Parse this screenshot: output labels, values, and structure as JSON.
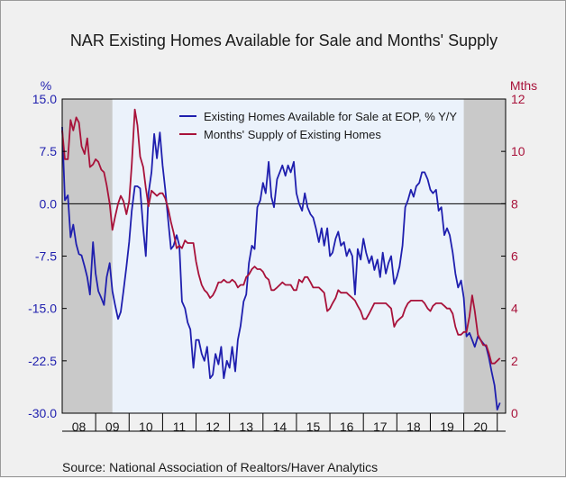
{
  "chart_data": {
    "type": "line",
    "title": "NAR Existing Homes Available for Sale and Months' Supply",
    "source": "Source:  National Association of Realtors/Haver Analytics",
    "y_left": {
      "unit": "%",
      "ticks": [
        "15.0",
        "7.5",
        "0.0",
        "-7.5",
        "-15.0",
        "-22.5",
        "-30.0"
      ],
      "range": [
        -30,
        15
      ],
      "color": "#1f1fae"
    },
    "y_right": {
      "unit": "Mths",
      "ticks": [
        "12",
        "10",
        "8",
        "6",
        "4",
        "2",
        "0"
      ],
      "range": [
        0,
        12
      ],
      "color": "#a8123a"
    },
    "x_ticks": [
      "08",
      "09",
      "10",
      "11",
      "12",
      "13",
      "14",
      "15",
      "16",
      "17",
      "18",
      "19",
      "20"
    ],
    "x_range": [
      2008.0,
      2021.25
    ],
    "recessions": [
      [
        2008.0,
        2009.5
      ],
      [
        2020.0,
        2021.25
      ]
    ],
    "zero_line": 0,
    "grid": false,
    "legend_position": "top-right",
    "series": [
      {
        "name": "Existing Homes Available for Sale at EOP, % Y/Y",
        "axis": "left",
        "color": "#1f1fae",
        "x": [
          2008.0,
          2008.08,
          2008.17,
          2008.25,
          2008.33,
          2008.42,
          2008.5,
          2008.58,
          2008.67,
          2008.75,
          2008.83,
          2008.92,
          2009.0,
          2009.08,
          2009.17,
          2009.25,
          2009.33,
          2009.42,
          2009.5,
          2009.58,
          2009.67,
          2009.75,
          2009.83,
          2009.92,
          2010.0,
          2010.08,
          2010.17,
          2010.25,
          2010.33,
          2010.42,
          2010.5,
          2010.58,
          2010.67,
          2010.75,
          2010.83,
          2010.92,
          2011.0,
          2011.08,
          2011.17,
          2011.25,
          2011.33,
          2011.42,
          2011.5,
          2011.58,
          2011.67,
          2011.75,
          2011.83,
          2011.92,
          2012.0,
          2012.08,
          2012.17,
          2012.25,
          2012.33,
          2012.42,
          2012.5,
          2012.58,
          2012.67,
          2012.75,
          2012.83,
          2012.92,
          2013.0,
          2013.08,
          2013.17,
          2013.25,
          2013.33,
          2013.42,
          2013.5,
          2013.58,
          2013.67,
          2013.75,
          2013.83,
          2013.92,
          2014.0,
          2014.08,
          2014.17,
          2014.25,
          2014.33,
          2014.42,
          2014.5,
          2014.58,
          2014.67,
          2014.75,
          2014.83,
          2014.92,
          2015.0,
          2015.08,
          2015.17,
          2015.25,
          2015.33,
          2015.42,
          2015.5,
          2015.58,
          2015.67,
          2015.75,
          2015.83,
          2015.92,
          2016.0,
          2016.08,
          2016.17,
          2016.25,
          2016.33,
          2016.42,
          2016.5,
          2016.58,
          2016.67,
          2016.75,
          2016.83,
          2016.92,
          2017.0,
          2017.08,
          2017.17,
          2017.25,
          2017.33,
          2017.42,
          2017.5,
          2017.58,
          2017.67,
          2017.75,
          2017.83,
          2017.92,
          2018.0,
          2018.08,
          2018.17,
          2018.25,
          2018.33,
          2018.42,
          2018.5,
          2018.58,
          2018.67,
          2018.75,
          2018.83,
          2018.92,
          2019.0,
          2019.08,
          2019.17,
          2019.25,
          2019.33,
          2019.42,
          2019.5,
          2019.58,
          2019.67,
          2019.75,
          2019.83,
          2019.92,
          2020.0,
          2020.08,
          2020.17,
          2020.25,
          2020.33,
          2020.42,
          2020.5,
          2020.58,
          2020.67,
          2020.75,
          2020.83,
          2020.92,
          2021.0,
          2021.08
        ],
        "values": [
          11.0,
          0.5,
          1.2,
          -4.8,
          -3.0,
          -5.8,
          -7.2,
          -7.4,
          -9.0,
          -10.5,
          -13.0,
          -5.5,
          -10.0,
          -12.5,
          -13.5,
          -14.5,
          -10.5,
          -8.5,
          -12.5,
          -14.5,
          -16.5,
          -15.5,
          -12.5,
          -9.0,
          -5.5,
          -1.0,
          2.5,
          2.5,
          2.2,
          -3.5,
          -7.5,
          1.5,
          4.5,
          10.0,
          6.5,
          10.2,
          5.5,
          2.0,
          -2.5,
          -6.5,
          -6.0,
          -4.5,
          -6.0,
          -14.0,
          -15.0,
          -17.0,
          -18.0,
          -23.5,
          -19.5,
          -19.5,
          -21.5,
          -22.5,
          -20.5,
          -25.0,
          -24.5,
          -21.5,
          -23.0,
          -20.5,
          -25.0,
          -22.5,
          -23.5,
          -20.5,
          -24.0,
          -19.5,
          -17.5,
          -14.0,
          -13.0,
          -8.5,
          -6.0,
          -6.5,
          -0.5,
          0.5,
          3.0,
          1.5,
          6.0,
          1.0,
          -0.5,
          3.5,
          4.5,
          5.5,
          4.0,
          5.5,
          4.5,
          6.0,
          1.5,
          0.0,
          -1.0,
          1.5,
          -0.5,
          -1.5,
          -2.0,
          -3.5,
          -5.5,
          -3.5,
          -6.0,
          -3.5,
          -7.5,
          -7.0,
          -5.0,
          -4.0,
          -6.0,
          -5.5,
          -7.5,
          -6.5,
          -7.5,
          -13.0,
          -6.5,
          -8.0,
          -5.0,
          -7.0,
          -8.5,
          -7.5,
          -9.5,
          -8.0,
          -10.5,
          -7.0,
          -10.0,
          -8.5,
          -7.5,
          -11.5,
          -10.5,
          -9.0,
          -6.0,
          -0.5,
          0.5,
          2.0,
          1.0,
          2.5,
          3.0,
          4.5,
          4.5,
          3.5,
          2.0,
          1.5,
          2.0,
          -1.0,
          -0.5,
          -4.5,
          -3.5,
          -4.5,
          -7.0,
          -10.0,
          -12.0,
          -11.0,
          -13.5,
          -19.0,
          -18.5,
          -19.5,
          -20.5,
          -19.0,
          -19.5,
          -20.0,
          -20.5,
          -22.0,
          -24.0,
          -26.0,
          -29.5,
          -28.5
        ]
      },
      {
        "name": "Months' Supply of Existing Homes",
        "axis": "right",
        "color": "#a8123a",
        "x": [
          2008.0,
          2008.08,
          2008.17,
          2008.25,
          2008.33,
          2008.42,
          2008.5,
          2008.58,
          2008.67,
          2008.75,
          2008.83,
          2008.92,
          2009.0,
          2009.08,
          2009.17,
          2009.25,
          2009.33,
          2009.42,
          2009.5,
          2009.58,
          2009.67,
          2009.75,
          2009.83,
          2009.92,
          2010.0,
          2010.08,
          2010.17,
          2010.25,
          2010.33,
          2010.42,
          2010.5,
          2010.58,
          2010.67,
          2010.75,
          2010.83,
          2010.92,
          2011.0,
          2011.08,
          2011.17,
          2011.25,
          2011.33,
          2011.42,
          2011.5,
          2011.58,
          2011.67,
          2011.75,
          2011.83,
          2011.92,
          2012.0,
          2012.08,
          2012.17,
          2012.25,
          2012.33,
          2012.42,
          2012.5,
          2012.58,
          2012.67,
          2012.75,
          2012.83,
          2012.92,
          2013.0,
          2013.08,
          2013.17,
          2013.25,
          2013.33,
          2013.42,
          2013.5,
          2013.58,
          2013.67,
          2013.75,
          2013.83,
          2013.92,
          2014.0,
          2014.08,
          2014.17,
          2014.25,
          2014.33,
          2014.42,
          2014.5,
          2014.58,
          2014.67,
          2014.75,
          2014.83,
          2014.92,
          2015.0,
          2015.08,
          2015.17,
          2015.25,
          2015.33,
          2015.42,
          2015.5,
          2015.58,
          2015.67,
          2015.75,
          2015.83,
          2015.92,
          2016.0,
          2016.08,
          2016.17,
          2016.25,
          2016.33,
          2016.42,
          2016.5,
          2016.58,
          2016.67,
          2016.75,
          2016.83,
          2016.92,
          2017.0,
          2017.08,
          2017.17,
          2017.25,
          2017.33,
          2017.42,
          2017.5,
          2017.58,
          2017.67,
          2017.75,
          2017.83,
          2017.92,
          2018.0,
          2018.08,
          2018.17,
          2018.25,
          2018.33,
          2018.42,
          2018.5,
          2018.58,
          2018.67,
          2018.75,
          2018.83,
          2018.92,
          2019.0,
          2019.08,
          2019.17,
          2019.25,
          2019.33,
          2019.42,
          2019.5,
          2019.58,
          2019.67,
          2019.75,
          2019.83,
          2019.92,
          2020.0,
          2020.08,
          2020.17,
          2020.25,
          2020.33,
          2020.42,
          2020.5,
          2020.58,
          2020.67,
          2020.75,
          2020.83,
          2020.92,
          2021.0,
          2021.08
        ],
        "values": [
          10.8,
          9.7,
          9.7,
          11.2,
          10.8,
          11.3,
          11.1,
          10.2,
          9.9,
          10.5,
          9.4,
          9.5,
          9.7,
          9.6,
          9.3,
          9.2,
          8.7,
          8.0,
          7.0,
          7.5,
          8.0,
          8.3,
          8.1,
          7.6,
          8.1,
          9.5,
          11.6,
          11.0,
          9.8,
          9.4,
          8.6,
          7.9,
          8.5,
          8.4,
          8.3,
          8.4,
          8.4,
          8.2,
          7.8,
          7.3,
          6.9,
          6.3,
          6.4,
          6.3,
          6.6,
          6.5,
          6.5,
          6.5,
          5.8,
          5.3,
          4.9,
          4.7,
          4.6,
          4.4,
          4.5,
          4.7,
          5.0,
          5.0,
          5.1,
          5.0,
          5.0,
          5.1,
          5.0,
          4.8,
          4.9,
          4.9,
          5.2,
          5.3,
          5.5,
          5.6,
          5.5,
          5.5,
          5.4,
          5.2,
          5.1,
          4.7,
          4.7,
          4.8,
          4.9,
          5.0,
          4.9,
          4.9,
          4.9,
          4.7,
          4.7,
          5.1,
          5.0,
          5.2,
          5.2,
          5.0,
          4.8,
          4.8,
          4.8,
          4.7,
          4.6,
          3.9,
          4.0,
          4.2,
          4.4,
          4.7,
          4.6,
          4.6,
          4.6,
          4.5,
          4.4,
          4.3,
          4.1,
          3.9,
          3.6,
          3.6,
          3.8,
          4.0,
          4.2,
          4.2,
          4.2,
          4.2,
          4.2,
          4.1,
          4.0,
          3.3,
          3.5,
          3.6,
          3.7,
          4.0,
          4.2,
          4.3,
          4.3,
          4.3,
          4.3,
          4.3,
          4.2,
          4.0,
          3.9,
          4.1,
          4.2,
          4.2,
          4.2,
          4.1,
          4.0,
          4.0,
          3.8,
          3.3,
          3.0,
          3.0,
          3.1,
          3.1,
          3.7,
          4.5,
          3.9,
          3.0,
          2.8,
          2.6,
          2.6,
          2.3,
          1.9,
          1.9,
          2.0,
          2.1
        ]
      }
    ]
  }
}
